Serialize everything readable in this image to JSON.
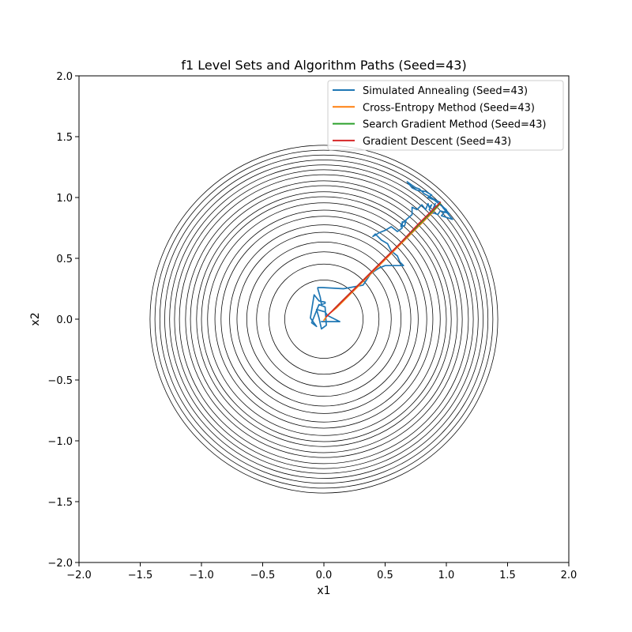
{
  "chart_data": {
    "type": "line",
    "title": "f1 Level Sets and Algorithm Paths (Seed=43)",
    "xlabel": "x1",
    "ylabel": "x2",
    "xlim": [
      -2.0,
      2.0
    ],
    "ylim": [
      -2.0,
      2.0
    ],
    "xticks": [
      "−2.0",
      "−1.5",
      "−1.0",
      "−0.5",
      "0.0",
      "0.5",
      "1.0",
      "1.5",
      "2.0"
    ],
    "yticks": [
      "−2.0",
      "−1.5",
      "−1.0",
      "−0.5",
      "0.0",
      "0.5",
      "1.0",
      "1.5",
      "2.0"
    ],
    "grid": false,
    "legend_position": "top-right",
    "contours": {
      "color": "#000000",
      "radii": [
        0.32,
        0.45,
        0.55,
        0.63,
        0.71,
        0.77,
        0.84,
        0.89,
        0.95,
        1.0,
        1.04,
        1.09,
        1.13,
        1.18,
        1.22,
        1.26,
        1.3,
        1.34,
        1.38,
        1.42
      ]
    },
    "series": [
      {
        "name": "Simulated Annealing (Seed=43)",
        "color": "#1f77b4",
        "x": [
          -0.02,
          0.13,
          0.03,
          0.01,
          -0.06,
          -0.04,
          -0.02,
          0.02,
          0.01,
          -0.04,
          -0.1,
          -0.06,
          -0.11,
          -0.08,
          -0.04,
          0.01,
          0.01,
          -0.02,
          -0.03,
          -0.05,
          -0.05,
          -0.01,
          0.16,
          0.32,
          0.38,
          0.42,
          0.45,
          0.5,
          0.58,
          0.65,
          0.62,
          0.6,
          0.55,
          0.52,
          0.47,
          0.42,
          0.4,
          0.45,
          0.5,
          0.55,
          0.6,
          0.64,
          0.64,
          0.67,
          0.67,
          0.66,
          0.63,
          0.63,
          0.72,
          0.72,
          0.76,
          0.8,
          0.83,
          0.85,
          0.86,
          0.88,
          0.86,
          0.89,
          0.91,
          0.88,
          0.93,
          0.95,
          1.02,
          0.97,
          1.05,
          0.96,
          1.0,
          0.9,
          0.85,
          0.88,
          0.83,
          0.76,
          0.72,
          0.68,
          0.72,
          0.75,
          0.78,
          0.82,
          0.86,
          0.91,
          0.95
        ],
        "y": [
          -0.02,
          -0.02,
          0.03,
          0.06,
          0.08,
          0.01,
          -0.08,
          -0.05,
          0.1,
          0.12,
          -0.03,
          -0.06,
          0.01,
          0.2,
          0.15,
          0.14,
          0.13,
          0.12,
          0.18,
          0.25,
          0.26,
          0.26,
          0.25,
          0.28,
          0.37,
          0.4,
          0.42,
          0.44,
          0.44,
          0.44,
          0.47,
          0.52,
          0.56,
          0.62,
          0.65,
          0.7,
          0.68,
          0.71,
          0.73,
          0.76,
          0.72,
          0.75,
          0.8,
          0.8,
          0.81,
          0.77,
          0.76,
          0.78,
          0.86,
          0.92,
          0.9,
          0.94,
          0.9,
          0.95,
          0.92,
          0.94,
          0.9,
          0.87,
          0.95,
          0.88,
          0.86,
          0.89,
          0.87,
          0.92,
          0.82,
          0.85,
          0.9,
          0.98,
          1.0,
          1.02,
          1.05,
          1.06,
          1.08,
          1.13,
          1.1,
          1.08,
          1.07,
          1.03,
          1.01,
          0.98,
          0.96
        ]
      },
      {
        "name": "Cross-Entropy Method (Seed=43)",
        "color": "#ff7f0e",
        "x": [
          0.0,
          0.02,
          0.05,
          0.1,
          0.18,
          0.28,
          0.38,
          0.48,
          0.58,
          0.68,
          0.78,
          0.88,
          0.95
        ],
        "y": [
          -0.01,
          0.02,
          0.05,
          0.09,
          0.17,
          0.27,
          0.37,
          0.47,
          0.57,
          0.67,
          0.77,
          0.87,
          0.95
        ]
      },
      {
        "name": "Search Gradient Method (Seed=43)",
        "color": "#2ca02c",
        "x": [
          0.95,
          0.8,
          0.65,
          0.5,
          0.38,
          0.28,
          0.2,
          0.14,
          0.1,
          0.08
        ],
        "y": [
          0.95,
          0.8,
          0.65,
          0.5,
          0.38,
          0.28,
          0.2,
          0.14,
          0.1,
          0.08
        ]
      },
      {
        "name": "Gradient Descent (Seed=43)",
        "color": "#d62728",
        "x": [
          0.95,
          0.76,
          0.61,
          0.49,
          0.39,
          0.31,
          0.25,
          0.2,
          0.16,
          0.13,
          0.1,
          0.08,
          0.06,
          0.05,
          0.04,
          0.03,
          0.02
        ],
        "y": [
          0.96,
          0.77,
          0.61,
          0.49,
          0.39,
          0.31,
          0.25,
          0.2,
          0.16,
          0.13,
          0.1,
          0.08,
          0.06,
          0.05,
          0.04,
          0.03,
          0.02
        ]
      }
    ]
  }
}
